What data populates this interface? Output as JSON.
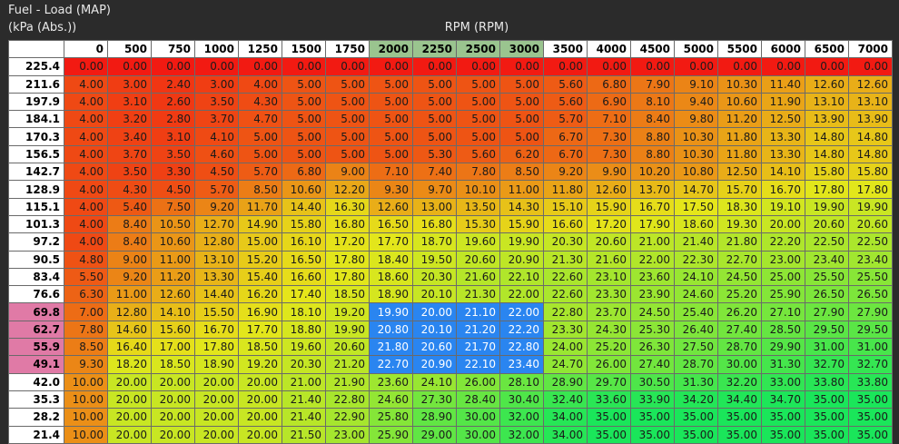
{
  "header": {
    "title": "Fuel - Load (MAP)",
    "load_unit": "(kPa (Abs.))",
    "rpm_label": "RPM (RPM)"
  },
  "colors": {
    "low": "#f21a12",
    "mid": "#e5e61a",
    "high": "#1ae65a",
    "selection": "#2a85f0",
    "selected_column_header": "#9ac48f",
    "selected_row_header": "#e07aa6"
  },
  "table": {
    "rpm": [
      "0",
      "500",
      "750",
      "1000",
      "1250",
      "1500",
      "1750",
      "2000",
      "2250",
      "2500",
      "3000",
      "3500",
      "4000",
      "4500",
      "5000",
      "5500",
      "6000",
      "6500",
      "7000"
    ],
    "selected_columns": [
      7,
      8,
      9,
      10
    ],
    "selected_rows": [
      14,
      15,
      16,
      17
    ],
    "rows": [
      {
        "load": "225.4",
        "values": [
          "0.00",
          "0.00",
          "0.00",
          "0.00",
          "0.00",
          "0.00",
          "0.00",
          "0.00",
          "0.00",
          "0.00",
          "0.00",
          "0.00",
          "0.00",
          "0.00",
          "0.00",
          "0.00",
          "0.00",
          "0.00",
          "0.00"
        ]
      },
      {
        "load": "211.6",
        "values": [
          "4.00",
          "3.00",
          "2.40",
          "3.00",
          "4.00",
          "5.00",
          "5.00",
          "5.00",
          "5.00",
          "5.00",
          "5.00",
          "5.60",
          "6.80",
          "7.90",
          "9.10",
          "10.30",
          "11.40",
          "12.60",
          "12.60"
        ]
      },
      {
        "load": "197.9",
        "values": [
          "4.00",
          "3.10",
          "2.60",
          "3.50",
          "4.30",
          "5.00",
          "5.00",
          "5.00",
          "5.00",
          "5.00",
          "5.00",
          "5.60",
          "6.90",
          "8.10",
          "9.40",
          "10.60",
          "11.90",
          "13.10",
          "13.10"
        ]
      },
      {
        "load": "184.1",
        "values": [
          "4.00",
          "3.20",
          "2.80",
          "3.70",
          "4.70",
          "5.00",
          "5.00",
          "5.00",
          "5.00",
          "5.00",
          "5.00",
          "5.70",
          "7.10",
          "8.40",
          "9.80",
          "11.20",
          "12.50",
          "13.90",
          "13.90"
        ]
      },
      {
        "load": "170.3",
        "values": [
          "4.00",
          "3.40",
          "3.10",
          "4.10",
          "5.00",
          "5.00",
          "5.00",
          "5.00",
          "5.00",
          "5.00",
          "5.00",
          "6.70",
          "7.30",
          "8.80",
          "10.30",
          "11.80",
          "13.30",
          "14.80",
          "14.80"
        ]
      },
      {
        "load": "156.5",
        "values": [
          "4.00",
          "3.70",
          "3.50",
          "4.60",
          "5.00",
          "5.00",
          "5.00",
          "5.00",
          "5.30",
          "5.60",
          "6.20",
          "6.70",
          "7.30",
          "8.80",
          "10.30",
          "11.80",
          "13.30",
          "14.80",
          "14.80"
        ]
      },
      {
        "load": "142.7",
        "values": [
          "4.00",
          "3.50",
          "3.30",
          "4.50",
          "5.70",
          "6.80",
          "9.00",
          "7.10",
          "7.40",
          "7.80",
          "8.50",
          "9.20",
          "9.90",
          "10.20",
          "10.80",
          "12.50",
          "14.10",
          "15.80",
          "15.80"
        ]
      },
      {
        "load": "128.9",
        "values": [
          "4.00",
          "4.30",
          "4.50",
          "5.70",
          "8.50",
          "10.60",
          "12.20",
          "9.30",
          "9.70",
          "10.10",
          "11.00",
          "11.80",
          "12.60",
          "13.70",
          "14.70",
          "15.70",
          "16.70",
          "17.80",
          "17.80"
        ]
      },
      {
        "load": "115.1",
        "values": [
          "4.00",
          "5.40",
          "7.50",
          "9.20",
          "11.70",
          "14.40",
          "16.30",
          "12.60",
          "13.00",
          "13.50",
          "14.30",
          "15.10",
          "15.90",
          "16.70",
          "17.50",
          "18.30",
          "19.10",
          "19.90",
          "19.90"
        ]
      },
      {
        "load": "101.3",
        "values": [
          "4.00",
          "8.40",
          "10.50",
          "12.70",
          "14.90",
          "15.80",
          "16.80",
          "16.50",
          "16.80",
          "15.30",
          "15.90",
          "16.60",
          "17.20",
          "17.90",
          "18.60",
          "19.30",
          "20.00",
          "20.60",
          "20.60"
        ]
      },
      {
        "load": "97.2",
        "values": [
          "4.00",
          "8.40",
          "10.60",
          "12.80",
          "15.00",
          "16.10",
          "17.20",
          "17.70",
          "18.70",
          "19.60",
          "19.90",
          "20.30",
          "20.60",
          "21.00",
          "21.40",
          "21.80",
          "22.20",
          "22.50",
          "22.50"
        ]
      },
      {
        "load": "90.5",
        "values": [
          "4.80",
          "9.00",
          "11.00",
          "13.10",
          "15.20",
          "16.50",
          "17.80",
          "18.40",
          "19.50",
          "20.60",
          "20.90",
          "21.30",
          "21.60",
          "22.00",
          "22.30",
          "22.70",
          "23.00",
          "23.40",
          "23.40"
        ]
      },
      {
        "load": "83.4",
        "values": [
          "5.50",
          "9.20",
          "11.20",
          "13.30",
          "15.40",
          "16.60",
          "17.80",
          "18.60",
          "20.30",
          "21.60",
          "22.10",
          "22.60",
          "23.10",
          "23.60",
          "24.10",
          "24.50",
          "25.00",
          "25.50",
          "25.50"
        ]
      },
      {
        "load": "76.6",
        "values": [
          "6.30",
          "11.00",
          "12.60",
          "14.40",
          "16.20",
          "17.40",
          "18.50",
          "18.90",
          "20.10",
          "21.30",
          "22.00",
          "22.60",
          "23.30",
          "23.90",
          "24.60",
          "25.20",
          "25.90",
          "26.50",
          "26.50"
        ]
      },
      {
        "load": "69.8",
        "values": [
          "7.00",
          "12.80",
          "14.10",
          "15.50",
          "16.90",
          "18.10",
          "19.20",
          "19.90",
          "20.00",
          "21.10",
          "22.00",
          "22.80",
          "23.70",
          "24.50",
          "25.40",
          "26.20",
          "27.10",
          "27.90",
          "27.90"
        ]
      },
      {
        "load": "62.7",
        "values": [
          "7.80",
          "14.60",
          "15.60",
          "16.70",
          "17.70",
          "18.80",
          "19.90",
          "20.80",
          "20.10",
          "21.20",
          "22.20",
          "23.30",
          "24.30",
          "25.30",
          "26.40",
          "27.40",
          "28.50",
          "29.50",
          "29.50"
        ]
      },
      {
        "load": "55.9",
        "values": [
          "8.50",
          "16.40",
          "17.00",
          "17.80",
          "18.50",
          "19.60",
          "20.60",
          "21.80",
          "20.60",
          "21.70",
          "22.80",
          "24.00",
          "25.20",
          "26.30",
          "27.50",
          "28.70",
          "29.90",
          "31.00",
          "31.00"
        ]
      },
      {
        "load": "49.1",
        "values": [
          "9.30",
          "18.20",
          "18.50",
          "18.90",
          "19.20",
          "20.30",
          "21.20",
          "22.70",
          "20.90",
          "22.10",
          "23.40",
          "24.70",
          "26.00",
          "27.40",
          "28.70",
          "30.00",
          "31.30",
          "32.70",
          "32.70"
        ]
      },
      {
        "load": "42.0",
        "values": [
          "10.00",
          "20.00",
          "20.00",
          "20.00",
          "20.00",
          "21.00",
          "21.90",
          "23.60",
          "24.10",
          "26.00",
          "28.10",
          "28.90",
          "29.70",
          "30.50",
          "31.30",
          "32.20",
          "33.00",
          "33.80",
          "33.80"
        ]
      },
      {
        "load": "35.3",
        "values": [
          "10.00",
          "20.00",
          "20.00",
          "20.00",
          "20.00",
          "21.40",
          "22.80",
          "24.60",
          "27.30",
          "28.40",
          "30.40",
          "32.40",
          "33.60",
          "33.90",
          "34.20",
          "34.40",
          "34.70",
          "35.00",
          "35.00"
        ]
      },
      {
        "load": "28.2",
        "values": [
          "10.00",
          "20.00",
          "20.00",
          "20.00",
          "20.00",
          "21.40",
          "22.90",
          "25.80",
          "28.90",
          "30.00",
          "32.00",
          "34.00",
          "35.00",
          "35.00",
          "35.00",
          "35.00",
          "35.00",
          "35.00",
          "35.00"
        ]
      },
      {
        "load": "21.4",
        "values": [
          "10.00",
          "20.00",
          "20.00",
          "20.00",
          "20.00",
          "21.50",
          "23.00",
          "25.90",
          "29.00",
          "30.00",
          "32.00",
          "34.00",
          "35.00",
          "35.00",
          "35.00",
          "35.00",
          "35.00",
          "35.00",
          "35.00"
        ]
      }
    ]
  }
}
